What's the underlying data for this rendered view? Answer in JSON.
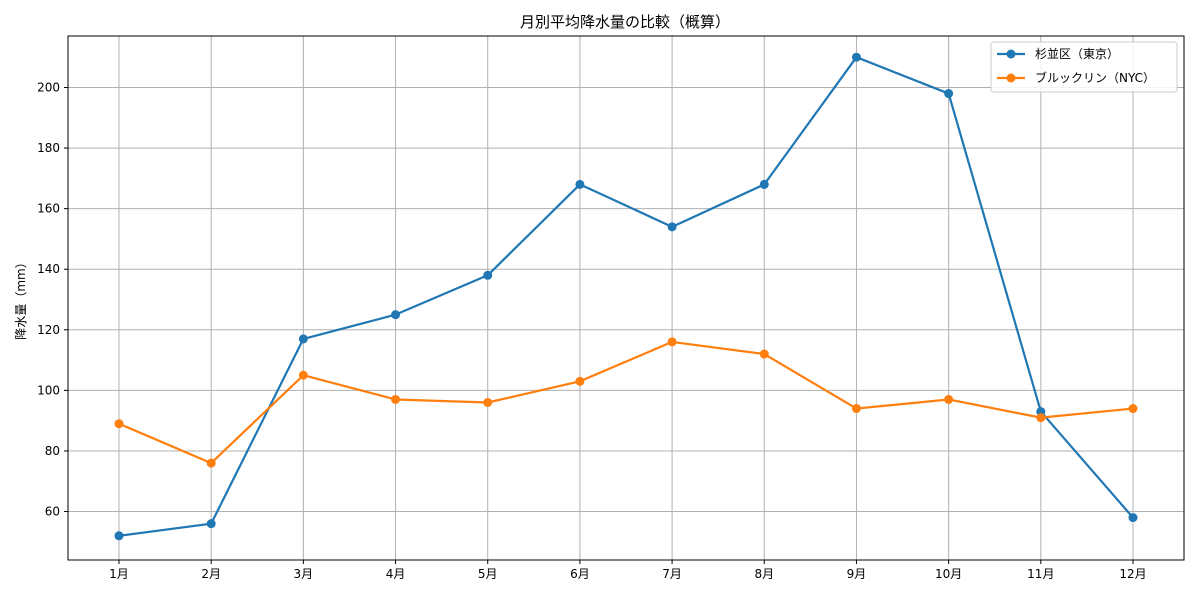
{
  "chart_data": {
    "type": "line",
    "title": "月別平均降水量の比較（概算）",
    "xlabel": "",
    "ylabel": "降水量（mm）",
    "categories": [
      "1月",
      "2月",
      "3月",
      "4月",
      "5月",
      "6月",
      "7月",
      "8月",
      "9月",
      "10月",
      "11月",
      "12月"
    ],
    "series": [
      {
        "name": "杉並区（東京）",
        "color": "#1f77b4",
        "values": [
          52,
          56,
          117,
          125,
          138,
          168,
          154,
          168,
          210,
          198,
          93,
          58
        ]
      },
      {
        "name": "ブルックリン（NYC）",
        "color": "#ff7f0e",
        "values": [
          89,
          76,
          105,
          97,
          96,
          103,
          116,
          112,
          94,
          97,
          91,
          94
        ]
      }
    ],
    "ylim": [
      44,
      217
    ],
    "yticks": [
      60,
      80,
      100,
      120,
      140,
      160,
      180,
      200
    ],
    "grid": true,
    "legend_position": "top-right",
    "marker": "circle"
  }
}
